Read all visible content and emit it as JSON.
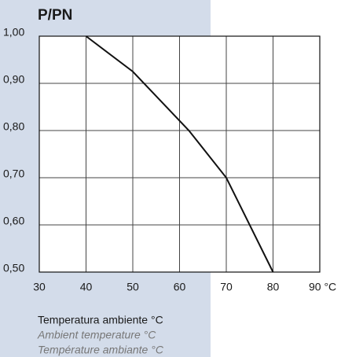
{
  "chart_data": {
    "type": "line",
    "title": "P/PN",
    "xlabel": [
      "Temperatura ambiente °C",
      "Ambient temperature °C",
      "Température ambiante °C"
    ],
    "x": [
      40,
      50,
      62,
      70,
      80
    ],
    "series": [
      {
        "name": "P/PN",
        "color": "#111111",
        "values": [
          1.0,
          0.925,
          0.8,
          0.7,
          0.5
        ]
      }
    ],
    "xlim": [
      30,
      90
    ],
    "xticks": [
      30,
      40,
      50,
      60,
      70,
      80,
      {
        "value": 90,
        "label": "90 °C"
      }
    ],
    "ylim": [
      0.5,
      1.0
    ],
    "yticks": [
      {
        "value": 0.5,
        "label": "0,50"
      },
      {
        "value": 0.6,
        "label": "0,60"
      },
      {
        "value": 0.7,
        "label": "0,70"
      },
      {
        "value": 0.8,
        "label": "0,80"
      },
      {
        "value": 0.9,
        "label": "0,90"
      },
      {
        "value": 1.0,
        "label": "1,00"
      }
    ],
    "grid": true
  }
}
